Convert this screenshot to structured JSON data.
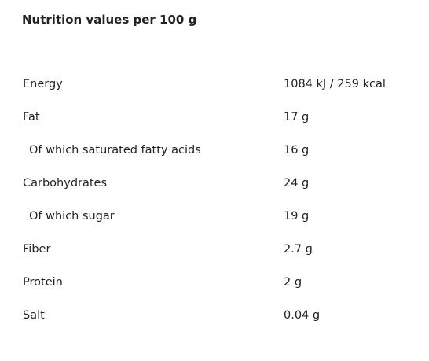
{
  "header": {
    "title": "Nutrition values per 100 g"
  },
  "table": {
    "rows": [
      [
        "Energy",
        "1084 kJ / 259 kcal"
      ],
      [
        "Fat",
        "17 g"
      ],
      [
        "Of which saturated fatty acids",
        "16 g"
      ],
      [
        "Carbohydrates",
        "24 g"
      ],
      [
        "Of which sugar",
        "19 g"
      ],
      [
        "Fiber",
        "2.7 g"
      ],
      [
        "Protein",
        "2 g"
      ],
      [
        "Salt",
        "0.04 g"
      ]
    ]
  }
}
